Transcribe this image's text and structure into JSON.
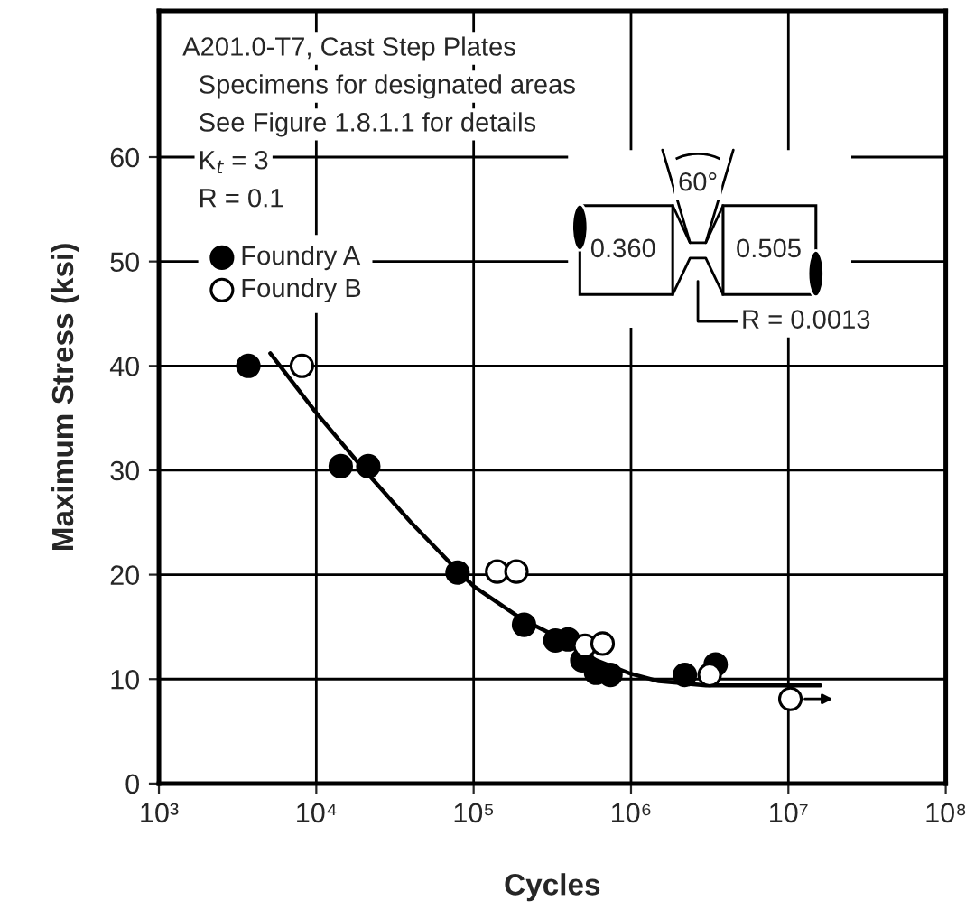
{
  "chart_data": {
    "type": "scatter",
    "xlabel": "Cycles",
    "ylabel": "Maximum Stress (ksi)",
    "log": "x",
    "xlim": [
      1000,
      100000000
    ],
    "xticks": [
      {
        "value": 1000,
        "label": "10³"
      },
      {
        "value": 10000,
        "label": "10⁴"
      },
      {
        "value": 100000,
        "label": "10⁵"
      },
      {
        "value": 1000000,
        "label": "10⁶"
      },
      {
        "value": 10000000,
        "label": "10⁷"
      },
      {
        "value": 100000000,
        "label": "10⁸"
      }
    ],
    "ylim": [
      0,
      74
    ],
    "yticks": [
      0,
      10,
      20,
      30,
      40,
      50,
      60
    ],
    "grid": true,
    "legend": "top left",
    "marker": "circle",
    "annotations": [
      "A201.0-T7, Cast Step Plates",
      "Specimens for designated areas",
      "See Figure 1.8.1.1 for details",
      "K$_{t}$ = 3",
      "R = 0.1",
      "60°",
      "0.360",
      "0.505",
      "R = 0.0013"
    ],
    "series": [
      {
        "name": "Foundry A",
        "color": "#000000",
        "x": [
          3700,
          14300,
          21400,
          79000,
          209000,
          331000,
          398000,
          490000,
          600000,
          740000,
          2200000,
          3450000
        ],
        "values": [
          40,
          30.4,
          30.4,
          20.2,
          15.2,
          13.7,
          13.8,
          11.8,
          10.6,
          10.4,
          10.4,
          11.4
        ]
      },
      {
        "name": "Foundry B",
        "color": "#ffffff",
        "x": [
          8100,
          141000,
          187000,
          510000,
          660000,
          3160000,
          10300000
        ],
        "values": [
          40,
          20.3,
          20.3,
          13.2,
          13.4,
          10.4,
          8.1
        ]
      },
      {
        "type": "line",
        "color": "#000000",
        "marker": "none",
        "x": [
          5100,
          10000,
          20300,
          40000,
          79000,
          100000,
          200000,
          400000,
          600000,
          1000000,
          1500000,
          3000000,
          16000000
        ],
        "values": [
          41.2,
          35.5,
          30,
          25,
          20.4,
          18.9,
          15.8,
          13.5,
          11.8,
          10.5,
          9.8,
          9.4,
          9.4
        ]
      }
    ]
  }
}
